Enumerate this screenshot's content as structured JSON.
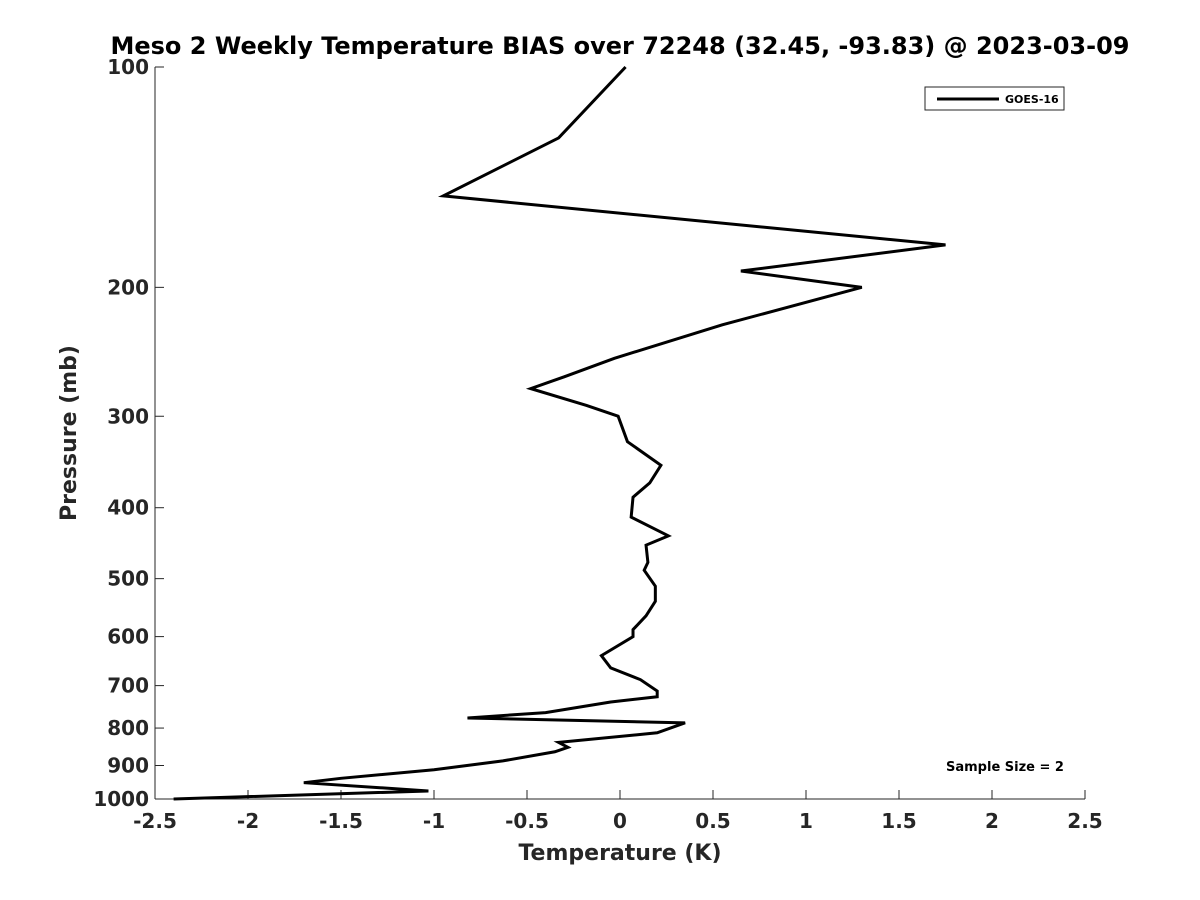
{
  "chart_data": {
    "type": "line",
    "title": "Meso 2 Weekly Temperature BIAS over 72248 (32.45, -93.83) @ 2023-03-09",
    "xlabel": "Temperature (K)",
    "ylabel": "Pressure (mb)",
    "xlim": [
      -2.5,
      2.5
    ],
    "ylim": [
      100,
      1000
    ],
    "yscale": "log",
    "yreversed": true,
    "xticks": [
      -2.5,
      -2,
      -1.5,
      -1,
      -0.5,
      0,
      0.5,
      1,
      1.5,
      2,
      2.5
    ],
    "xtick_labels": [
      "-2.5",
      "-2",
      "-1.5",
      "-1",
      "-0.5",
      "0",
      "0.5",
      "1",
      "1.5",
      "2",
      "2.5"
    ],
    "yticks": [
      100,
      200,
      300,
      400,
      500,
      600,
      700,
      800,
      900,
      1000
    ],
    "ytick_labels": [
      "100",
      "200",
      "300",
      "400",
      "500",
      "600",
      "700",
      "800",
      "900",
      "1000"
    ],
    "grid": false,
    "legend_position": "top-right",
    "series": [
      {
        "name": "GOES-16",
        "color": "#000000",
        "points": [
          {
            "x": 0.03,
            "y": 100
          },
          {
            "x": -0.33,
            "y": 125
          },
          {
            "x": -0.95,
            "y": 150
          },
          {
            "x": 1.75,
            "y": 175
          },
          {
            "x": 0.65,
            "y": 190
          },
          {
            "x": 1.3,
            "y": 200
          },
          {
            "x": 0.55,
            "y": 225
          },
          {
            "x": -0.03,
            "y": 250
          },
          {
            "x": -0.3,
            "y": 265
          },
          {
            "x": -0.48,
            "y": 275
          },
          {
            "x": -0.18,
            "y": 290
          },
          {
            "x": -0.01,
            "y": 300
          },
          {
            "x": 0.04,
            "y": 325
          },
          {
            "x": 0.22,
            "y": 350
          },
          {
            "x": 0.16,
            "y": 370
          },
          {
            "x": 0.07,
            "y": 387
          },
          {
            "x": 0.06,
            "y": 412
          },
          {
            "x": 0.26,
            "y": 437
          },
          {
            "x": 0.14,
            "y": 450
          },
          {
            "x": 0.15,
            "y": 475
          },
          {
            "x": 0.13,
            "y": 487
          },
          {
            "x": 0.19,
            "y": 512
          },
          {
            "x": 0.19,
            "y": 537
          },
          {
            "x": 0.14,
            "y": 562
          },
          {
            "x": 0.07,
            "y": 587
          },
          {
            "x": 0.07,
            "y": 600
          },
          {
            "x": -0.1,
            "y": 637
          },
          {
            "x": -0.05,
            "y": 662
          },
          {
            "x": 0.11,
            "y": 687
          },
          {
            "x": 0.2,
            "y": 712
          },
          {
            "x": 0.2,
            "y": 725
          },
          {
            "x": -0.05,
            "y": 737
          },
          {
            "x": -0.4,
            "y": 762
          },
          {
            "x": -0.82,
            "y": 775
          },
          {
            "x": 0.35,
            "y": 787
          },
          {
            "x": 0.2,
            "y": 812
          },
          {
            "x": -0.33,
            "y": 837
          },
          {
            "x": -0.28,
            "y": 850
          },
          {
            "x": -0.35,
            "y": 862
          },
          {
            "x": -0.63,
            "y": 887
          },
          {
            "x": -1.0,
            "y": 912
          },
          {
            "x": -1.5,
            "y": 937
          },
          {
            "x": -1.7,
            "y": 950
          },
          {
            "x": -1.03,
            "y": 975
          },
          {
            "x": -2.4,
            "y": 1000
          }
        ]
      }
    ],
    "annotations": [
      {
        "text": "Sample Size = 2"
      }
    ]
  }
}
